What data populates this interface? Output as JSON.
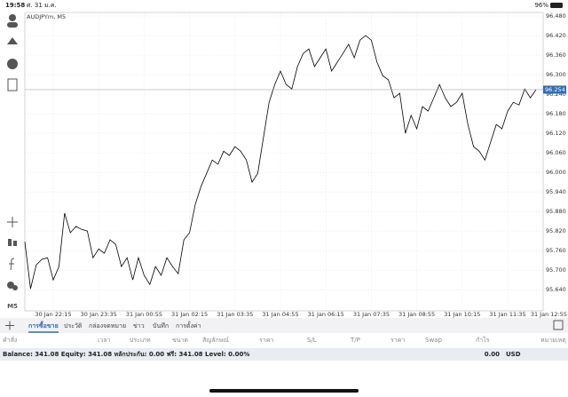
{
  "status_bar": {
    "time": "19:58",
    "date": "ศ. 31 ม.ค.",
    "battery": "96%"
  },
  "chart_data": {
    "type": "line",
    "title": "AUDJPYm, M5",
    "color": "#000000",
    "grid": true,
    "categories": [
      null,
      null,
      null,
      null,
      null,
      "30 Jan 22:15",
      null,
      null,
      null,
      null,
      null,
      null,
      null,
      "30 Jan 23:35",
      null,
      null,
      null,
      null,
      null,
      null,
      null,
      "31 Jan 00:55",
      null,
      null,
      null,
      null,
      null,
      null,
      null,
      "31 Jan 02:15",
      null,
      null,
      null,
      null,
      null,
      null,
      null,
      "31 Jan 03:35",
      null,
      null,
      null,
      null,
      null,
      null,
      null,
      "31 Jan 04:55",
      null,
      null,
      null,
      null,
      null,
      null,
      null,
      "31 Jan 06:15",
      null,
      null,
      null,
      null,
      null,
      null,
      null,
      "31 Jan 07:35",
      null,
      null,
      null,
      null,
      null,
      null,
      null,
      "31 Jan 08:55",
      null,
      null,
      null,
      null,
      null,
      null,
      null,
      "31 Jan 10:15",
      null,
      null,
      null,
      null,
      null,
      null,
      null,
      "31 Jan 11:35",
      null,
      null,
      null,
      null,
      null,
      null,
      null,
      "31 Jan 12:55"
    ],
    "values": [
      95.787,
      95.643,
      95.716,
      95.733,
      95.738,
      95.67,
      95.711,
      95.875,
      95.815,
      95.834,
      95.825,
      95.82,
      95.738,
      95.765,
      95.752,
      95.793,
      95.779,
      95.711,
      95.738,
      95.67,
      95.738,
      95.684,
      95.656,
      95.711,
      95.684,
      95.738,
      95.711,
      95.689,
      95.793,
      95.815,
      95.902,
      95.956,
      95.997,
      96.038,
      96.025,
      96.065,
      96.052,
      96.079,
      96.065,
      96.038,
      95.97,
      95.997,
      96.106,
      96.215,
      96.27,
      96.311,
      96.27,
      96.256,
      96.325,
      96.365,
      96.379,
      96.325,
      96.352,
      96.379,
      96.311,
      96.338,
      96.365,
      96.393,
      96.352,
      96.406,
      96.42,
      96.406,
      96.338,
      96.297,
      96.284,
      96.229,
      96.243,
      96.12,
      96.175,
      96.134,
      96.202,
      96.188,
      96.229,
      96.27,
      96.229,
      96.202,
      96.215,
      96.243,
      96.147,
      96.079,
      96.065,
      96.038,
      96.093,
      96.147,
      96.134,
      96.188,
      96.215,
      96.207,
      96.256,
      96.229,
      96.254,
      null,
      null,
      null
    ],
    "ylim": [
      95.575,
      96.491
    ],
    "yticks": [
      {
        "value": 95.64,
        "label": "95.640"
      },
      {
        "value": 95.7,
        "label": "95.700"
      },
      {
        "value": 95.76,
        "label": "95.760"
      },
      {
        "value": 95.82,
        "label": "95.820"
      },
      {
        "value": 95.88,
        "label": "95.880"
      },
      {
        "value": 95.94,
        "label": "95.940"
      },
      {
        "value": 96.0,
        "label": "96.000"
      },
      {
        "value": 96.06,
        "label": "96.060"
      },
      {
        "value": 96.12,
        "label": "96.120"
      },
      {
        "value": 96.18,
        "label": "96.180"
      },
      {
        "value": 96.24,
        "label": "96.240"
      },
      {
        "value": 96.3,
        "label": "96.300"
      },
      {
        "value": 96.36,
        "label": "96.360"
      },
      {
        "value": 96.42,
        "label": "96.420"
      },
      {
        "value": 96.48,
        "label": "96.480"
      }
    ],
    "current_price": 96.254
  },
  "toolbar": {
    "timeframe": "M5"
  },
  "tabs": [
    {
      "label": "การซื้อขาย",
      "selected": true
    },
    {
      "label": "ประวัติ"
    },
    {
      "label": "กล่องจดหมาย"
    },
    {
      "label": "ข่าว"
    },
    {
      "label": "บันทึก"
    },
    {
      "label": "การตั้งค่า"
    }
  ],
  "columns": [
    "คำสั่ง",
    "เวลา",
    "ประเภท",
    "ขนาด",
    "สัญลักษณ์",
    "ราคา",
    "S/L",
    "T/P",
    "ราคา",
    "Swap",
    "กำไร",
    "หมายเหตุ"
  ],
  "balance_row": {
    "text": "Balance: 341.08 Equity: 341.08 หลักประกัน: 0.00 ฟรี: 341.08 Level: 0.00%",
    "profit": "0.00",
    "currency": "USD"
  }
}
